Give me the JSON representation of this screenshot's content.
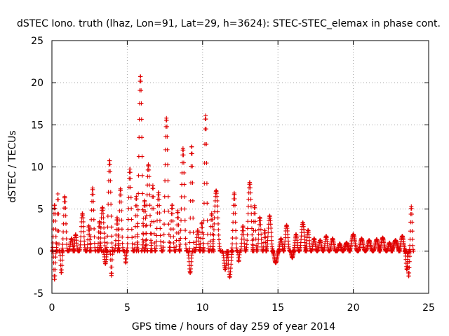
{
  "chart_data": {
    "type": "scatter",
    "title": "dSTEC Iono. truth (lhaz, Lon=91, Lat=29, h=3624): STEC-STEC_elemax in phase cont.",
    "xlabel": "GPS time / hours of day 259 of year 2014",
    "ylabel": "dSTEC  / TECUs",
    "xlim": [
      0,
      25
    ],
    "ylim": [
      -5,
      25
    ],
    "xticks": [
      0,
      5,
      10,
      15,
      20,
      25
    ],
    "yticks": [
      -5,
      0,
      5,
      10,
      15,
      20,
      25
    ],
    "grid": true,
    "marker": "+",
    "series_color": "#e00000",
    "arcs": [
      {
        "start": 0.0,
        "end": 0.35,
        "peak": 5.5
      },
      {
        "start": 0.05,
        "end": 0.3,
        "peak": -3.4
      },
      {
        "start": 0.3,
        "end": 0.5,
        "peak": 6.8
      },
      {
        "start": 0.5,
        "end": 0.75,
        "peak": -2.6
      },
      {
        "start": 0.65,
        "end": 1.05,
        "peak": 6.5
      },
      {
        "start": 1.1,
        "end": 1.5,
        "peak": 1.5
      },
      {
        "start": 1.4,
        "end": 1.75,
        "peak": 2.0
      },
      {
        "start": 1.8,
        "end": 2.25,
        "peak": 4.5
      },
      {
        "start": 2.3,
        "end": 2.6,
        "peak": 3.0
      },
      {
        "start": 2.5,
        "end": 2.9,
        "peak": 7.5
      },
      {
        "start": 3.0,
        "end": 3.3,
        "peak": 3.5
      },
      {
        "start": 3.1,
        "end": 3.6,
        "peak": 5.2
      },
      {
        "start": 3.4,
        "end": 3.7,
        "peak": -1.5
      },
      {
        "start": 3.6,
        "end": 4.05,
        "peak": 10.8
      },
      {
        "start": 3.85,
        "end": 4.05,
        "peak": -2.9
      },
      {
        "start": 4.15,
        "end": 4.5,
        "peak": 4.0
      },
      {
        "start": 4.35,
        "end": 4.75,
        "peak": 7.4
      },
      {
        "start": 4.8,
        "end": 5.0,
        "peak": -1.4
      },
      {
        "start": 4.95,
        "end": 5.4,
        "peak": 9.8
      },
      {
        "start": 5.45,
        "end": 5.75,
        "peak": 6.5
      },
      {
        "start": 5.6,
        "end": 6.15,
        "peak": 20.8
      },
      {
        "start": 5.95,
        "end": 6.35,
        "peak": 6.0
      },
      {
        "start": 6.15,
        "end": 6.65,
        "peak": 10.3
      },
      {
        "start": 6.55,
        "end": 6.85,
        "peak": 7.8
      },
      {
        "start": 6.85,
        "end": 7.3,
        "peak": 7.0
      },
      {
        "start": 7.35,
        "end": 7.85,
        "peak": 15.8
      },
      {
        "start": 7.8,
        "end": 8.15,
        "peak": 5.5
      },
      {
        "start": 8.2,
        "end": 8.5,
        "peak": 4.8
      },
      {
        "start": 8.45,
        "end": 8.95,
        "peak": 12.2
      },
      {
        "start": 9.0,
        "end": 9.35,
        "peak": -2.6
      },
      {
        "start": 9.1,
        "end": 9.45,
        "peak": 12.5
      },
      {
        "start": 9.5,
        "end": 9.85,
        "peak": 2.5
      },
      {
        "start": 9.8,
        "end": 10.1,
        "peak": 3.4
      },
      {
        "start": 10.0,
        "end": 10.4,
        "peak": 16.1
      },
      {
        "start": 10.45,
        "end": 10.75,
        "peak": 4.5
      },
      {
        "start": 10.6,
        "end": 11.2,
        "peak": 7.2
      },
      {
        "start": 11.3,
        "end": 11.7,
        "peak": -2.2
      },
      {
        "start": 11.6,
        "end": 12.0,
        "peak": -3.1
      },
      {
        "start": 11.9,
        "end": 12.3,
        "peak": 6.9
      },
      {
        "start": 12.3,
        "end": 12.5,
        "peak": -1.2
      },
      {
        "start": 12.5,
        "end": 12.85,
        "peak": 3.0
      },
      {
        "start": 12.85,
        "end": 13.4,
        "peak": 8.2
      },
      {
        "start": 13.3,
        "end": 13.6,
        "peak": 5.4
      },
      {
        "start": 13.6,
        "end": 14.0,
        "peak": 4.0
      },
      {
        "start": 14.0,
        "end": 14.25,
        "peak": 2.5
      },
      {
        "start": 14.2,
        "end": 14.7,
        "peak": 4.2
      },
      {
        "start": 14.6,
        "end": 15.1,
        "peak": -1.4
      },
      {
        "start": 15.0,
        "end": 15.4,
        "peak": 1.5
      },
      {
        "start": 15.35,
        "end": 15.8,
        "peak": 3.1
      },
      {
        "start": 15.8,
        "end": 16.1,
        "peak": -0.8
      },
      {
        "start": 16.0,
        "end": 16.4,
        "peak": 2.0
      },
      {
        "start": 16.4,
        "end": 16.9,
        "peak": 3.4
      },
      {
        "start": 16.8,
        "end": 17.2,
        "peak": 2.5
      },
      {
        "start": 17.2,
        "end": 17.6,
        "peak": 1.5
      },
      {
        "start": 17.6,
        "end": 18.0,
        "peak": 1.3
      },
      {
        "start": 18.0,
        "end": 18.4,
        "peak": 1.8
      },
      {
        "start": 18.4,
        "end": 18.85,
        "peak": 1.5
      },
      {
        "start": 18.9,
        "end": 19.3,
        "peak": 0.9
      },
      {
        "start": 19.3,
        "end": 19.8,
        "peak": 1.0
      },
      {
        "start": 19.7,
        "end": 20.3,
        "peak": 2.0
      },
      {
        "start": 20.3,
        "end": 20.8,
        "peak": 1.5
      },
      {
        "start": 20.8,
        "end": 21.3,
        "peak": 1.3
      },
      {
        "start": 21.3,
        "end": 21.8,
        "peak": 1.4
      },
      {
        "start": 21.7,
        "end": 22.2,
        "peak": 1.6
      },
      {
        "start": 22.2,
        "end": 22.6,
        "peak": 1.0
      },
      {
        "start": 22.5,
        "end": 23.1,
        "peak": 1.3
      },
      {
        "start": 23.0,
        "end": 23.5,
        "peak": 1.8
      },
      {
        "start": 23.4,
        "end": 23.7,
        "peak": -2.2
      },
      {
        "start": 23.55,
        "end": 23.8,
        "peak": -3.0
      },
      {
        "start": 23.7,
        "end": 24.0,
        "peak": 5.3
      }
    ]
  }
}
